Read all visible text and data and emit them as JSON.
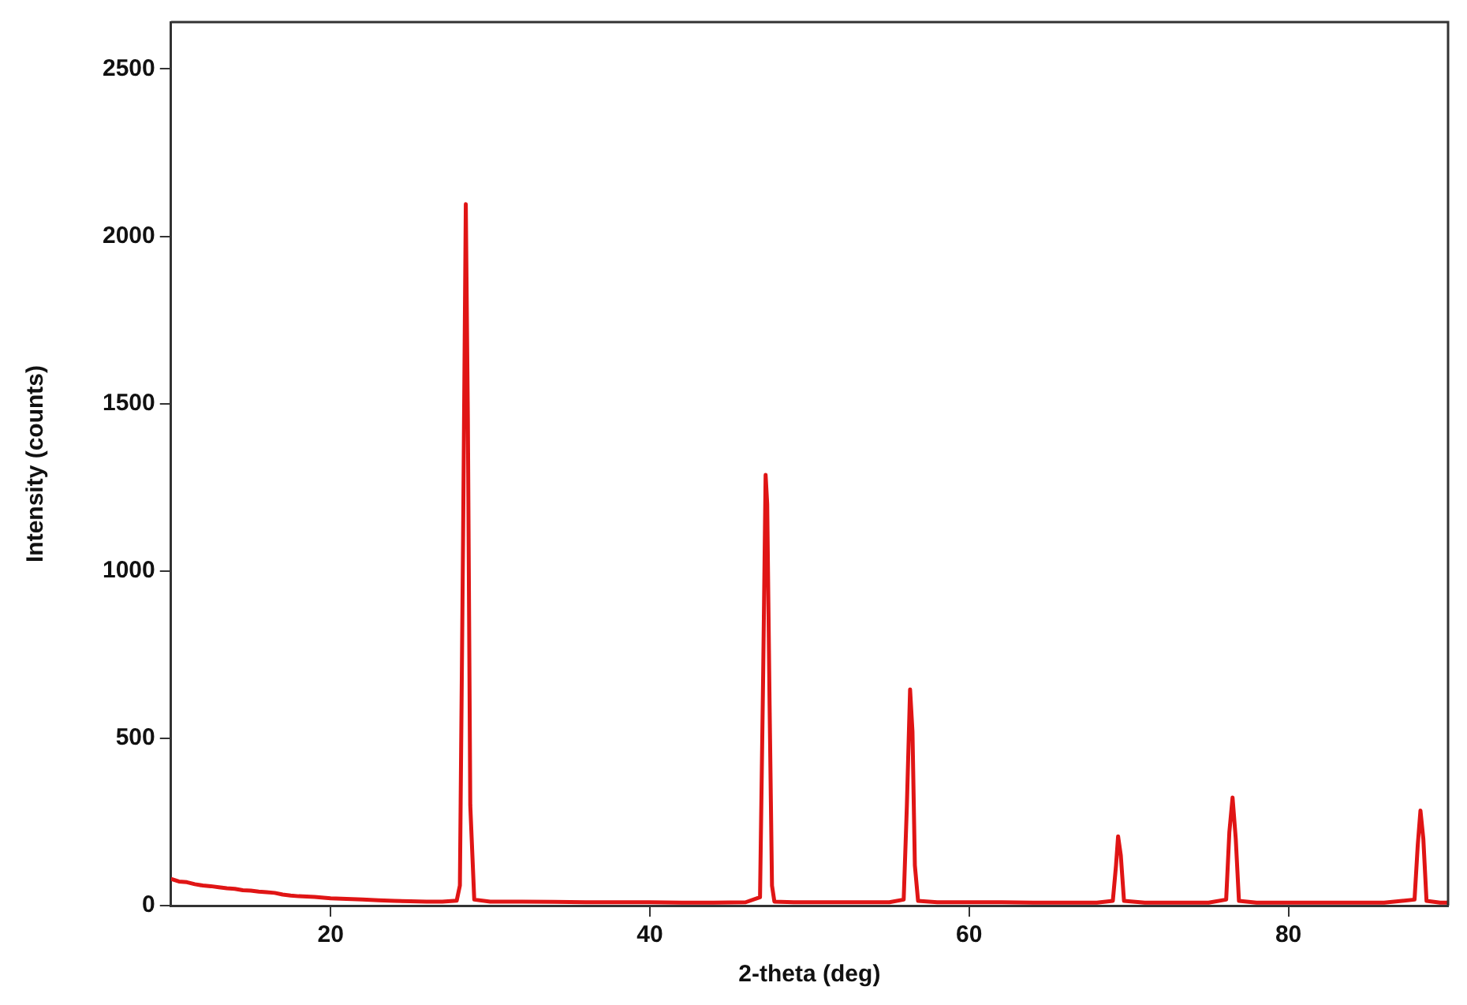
{
  "chart_data": {
    "type": "line",
    "xlabel": "2-theta (deg)",
    "ylabel": "Intensity (counts)",
    "color": "#e01515",
    "marker": "none",
    "x": [
      10,
      10.5,
      11,
      11.5,
      12,
      12.5,
      13,
      13.5,
      14,
      14.5,
      15,
      15.5,
      16,
      16.5,
      17,
      17.5,
      18,
      19,
      20,
      21,
      22,
      23,
      24,
      25,
      26,
      27,
      27.9,
      28.1,
      28.3,
      28.47,
      28.6,
      28.75,
      29,
      30,
      32,
      34,
      36,
      38,
      40,
      42,
      44,
      46,
      46.9,
      47.1,
      47.25,
      47.35,
      47.5,
      47.65,
      47.8,
      49,
      51,
      53,
      55,
      55.9,
      56.1,
      56.3,
      56.45,
      56.6,
      56.8,
      58,
      60,
      62,
      64,
      66,
      68,
      69,
      69.2,
      69.33,
      69.5,
      69.7,
      71,
      73,
      75,
      76.1,
      76.3,
      76.5,
      76.7,
      76.9,
      78,
      80,
      82,
      84,
      86,
      87.9,
      88.1,
      88.27,
      88.45,
      88.65,
      89.5,
      90
    ],
    "values": [
      80,
      72,
      70,
      64,
      60,
      58,
      55,
      52,
      50,
      46,
      45,
      42,
      40,
      38,
      33,
      30,
      28,
      26,
      22,
      20,
      18,
      16,
      14,
      13,
      12,
      12,
      15,
      60,
      1100,
      2096,
      1450,
      300,
      18,
      12,
      12,
      11,
      10,
      10,
      10,
      9,
      9,
      10,
      25,
      700,
      1287,
      1200,
      600,
      60,
      12,
      10,
      10,
      10,
      10,
      18,
      300,
      646,
      520,
      120,
      14,
      10,
      10,
      10,
      9,
      9,
      9,
      14,
      120,
      207,
      150,
      14,
      9,
      9,
      9,
      18,
      220,
      323,
      200,
      14,
      9,
      9,
      9,
      9,
      9,
      18,
      180,
      284,
      200,
      14,
      9,
      9
    ],
    "xlim": [
      10,
      90
    ],
    "ylim": [
      0,
      2640
    ],
    "xticks": [
      20,
      40,
      60,
      80
    ],
    "yticks": [
      0,
      500,
      1000,
      1500,
      2000,
      2500
    ]
  }
}
